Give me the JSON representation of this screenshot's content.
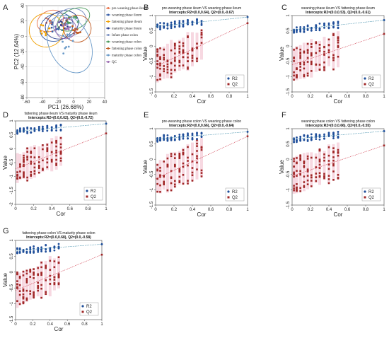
{
  "figure": {
    "panel_letters": [
      "A",
      "B",
      "C",
      "D",
      "E",
      "F",
      "G"
    ]
  },
  "chart_data": [
    {
      "id": "A",
      "type": "scatter",
      "xlabel": "PC1 (26.68%)",
      "ylabel": "PC2 (12.64%)",
      "xlim": [
        -60,
        40
      ],
      "ylim": [
        -80,
        40
      ],
      "xticks": [
        -60,
        -40,
        -20,
        0,
        20,
        40
      ],
      "yticks": [
        -80,
        -60,
        -40,
        -20,
        0,
        20,
        40
      ],
      "legend_position": "right",
      "groups": [
        {
          "name": "pre-weaning phase ileum",
          "color": "#e8734a",
          "center": [
            -30,
            20
          ],
          "spread": [
            8,
            6
          ],
          "n": 10
        },
        {
          "name": "weaning phase ileum",
          "color": "#3a5fa8",
          "center": [
            -22,
            12
          ],
          "spread": [
            10,
            8
          ],
          "n": 10
        },
        {
          "name": "fattening phase ileum",
          "color": "#f0a000",
          "center": [
            -35,
            8
          ],
          "spread": [
            10,
            10
          ],
          "n": 10
        },
        {
          "name": "maturity phase ileum",
          "color": "#2a3f8f",
          "center": [
            -15,
            15
          ],
          "spread": [
            10,
            8
          ],
          "n": 10
        },
        {
          "name": "Infant phase colon",
          "color": "#7a8fc0",
          "center": [
            -5,
            18
          ],
          "spread": [
            10,
            8
          ],
          "n": 10
        },
        {
          "name": "weaning phase colon",
          "color": "#4a9a5a",
          "center": [
            0,
            22
          ],
          "spread": [
            10,
            6
          ],
          "n": 10
        },
        {
          "name": "fattening phase colon",
          "color": "#c05a20",
          "center": [
            5,
            10
          ],
          "spread": [
            8,
            8
          ],
          "n": 10
        },
        {
          "name": "maturity phase colon",
          "color": "#6a9ac8",
          "center": [
            -5,
            -10
          ],
          "spread": [
            12,
            18
          ],
          "n": 10
        },
        {
          "name": "QC",
          "color": "#9a6ab0",
          "center": [
            -10,
            10
          ],
          "spread": [
            6,
            6
          ],
          "n": 6
        }
      ]
    },
    {
      "id": "B",
      "type": "scatter",
      "title_line1": "pre-weaning phase ileum VS weaning phase ileum",
      "title_line2": "Intercepts:R2=(0.0,0.64), Q2=(0.0,-0.67)",
      "xlabel": "Cor",
      "ylabel": "Value",
      "xlim": [
        0,
        1
      ],
      "ylim": [
        -1.5,
        1
      ],
      "xticks": [
        0,
        0.2,
        0.4,
        0.6,
        0.8,
        1.0
      ],
      "yticks": [
        -1.5,
        -1,
        -0.5,
        0,
        0.5,
        1
      ],
      "r2_intercept": 0.64,
      "r2_end": 0.95,
      "q2_intercept": -0.67,
      "q2_end": 0.75,
      "legend": [
        "R2",
        "Q2"
      ]
    },
    {
      "id": "C",
      "type": "scatter",
      "title_line1": "weaning phase ileum VS fattening phase ileum",
      "title_line2": "Intercepts:R2=(0.0,0.53), Q2=(0.0,-0.61)",
      "xlabel": "Cor",
      "ylabel": "Value",
      "xlim": [
        0,
        1
      ],
      "ylim": [
        -1.5,
        1
      ],
      "xticks": [
        0,
        0.2,
        0.4,
        0.6,
        0.8,
        1.0
      ],
      "yticks": [
        -1.5,
        -1,
        -0.5,
        0,
        0.5,
        1
      ],
      "r2_intercept": 0.53,
      "r2_end": 0.85,
      "q2_intercept": -0.61,
      "q2_end": 0.4,
      "legend": [
        "R2",
        "Q2"
      ]
    },
    {
      "id": "D",
      "type": "scatter",
      "title_line1": "fattening phase ileum VS maturity phase ileum",
      "title_line2": "Intercepts:R2=(0.0,0.62), Q2=(0.0,-0.72)",
      "xlabel": "Cor",
      "ylabel": "Value",
      "xlim": [
        0,
        1
      ],
      "ylim": [
        -2,
        1
      ],
      "xticks": [
        0,
        0.2,
        0.4,
        0.6,
        0.8,
        1.0
      ],
      "yticks": [
        -2,
        -1.5,
        -1,
        -0.5,
        0,
        0.5,
        1
      ],
      "r2_intercept": 0.62,
      "r2_end": 0.9,
      "q2_intercept": -0.72,
      "q2_end": 0.55,
      "legend": [
        "R2",
        "Q2"
      ]
    },
    {
      "id": "E",
      "type": "scatter",
      "title_line1": "pre-weaning phase colon VS weaning phase colon",
      "title_line2": "Intercepts:R2=(0.0,0.66), Q2=(0.0,-0.64)",
      "xlabel": "Cor",
      "ylabel": "Value",
      "xlim": [
        0,
        1
      ],
      "ylim": [
        -1.5,
        1
      ],
      "xticks": [
        0,
        0.2,
        0.4,
        0.6,
        0.8,
        1.0
      ],
      "yticks": [
        -1.5,
        -1,
        -0.5,
        0,
        0.5,
        1
      ],
      "r2_intercept": 0.66,
      "r2_end": 0.9,
      "q2_intercept": -0.64,
      "q2_end": 0.75,
      "legend": [
        "R2",
        "Q2"
      ]
    },
    {
      "id": "F",
      "type": "scatter",
      "title_line1": "weaning phase colon VS fattening phase colon",
      "title_line2": "Intercepts:R2=(0.0,0.66), Q2=(0.0,-0.55)",
      "xlabel": "Cor",
      "ylabel": "Value",
      "xlim": [
        0,
        1
      ],
      "ylim": [
        -1.5,
        1
      ],
      "xticks": [
        0,
        0.2,
        0.4,
        0.6,
        0.8,
        1.0
      ],
      "yticks": [
        -1.5,
        -1,
        -0.5,
        0,
        0.5,
        1
      ],
      "r2_intercept": 0.66,
      "r2_end": 0.92,
      "q2_intercept": -0.55,
      "q2_end": 0.45,
      "legend": [
        "R2",
        "Q2"
      ]
    },
    {
      "id": "G",
      "type": "scatter",
      "title_line1": "fattening phase colon VS maturity phase colon",
      "title_line2": "Intercepts:R2=(0.0,0.68), Q2=(0.0,-0.58)",
      "xlabel": "Cor",
      "ylabel": "Value",
      "xlim": [
        0,
        1
      ],
      "ylim": [
        -1.5,
        1
      ],
      "xticks": [
        0,
        0.2,
        0.4,
        0.6,
        0.8,
        1.0
      ],
      "yticks": [
        -1.5,
        -1,
        -0.5,
        0,
        0.5,
        1
      ],
      "r2_intercept": 0.68,
      "r2_end": 0.88,
      "q2_intercept": -0.58,
      "q2_end": 0.55,
      "legend": [
        "R2",
        "Q2"
      ]
    }
  ],
  "colors": {
    "r2": "#1f4e9a",
    "q2": "#a02828",
    "r2_line": "#3a8aa8",
    "q2_line": "#d04050",
    "q2_band": "#f4c8d4"
  }
}
